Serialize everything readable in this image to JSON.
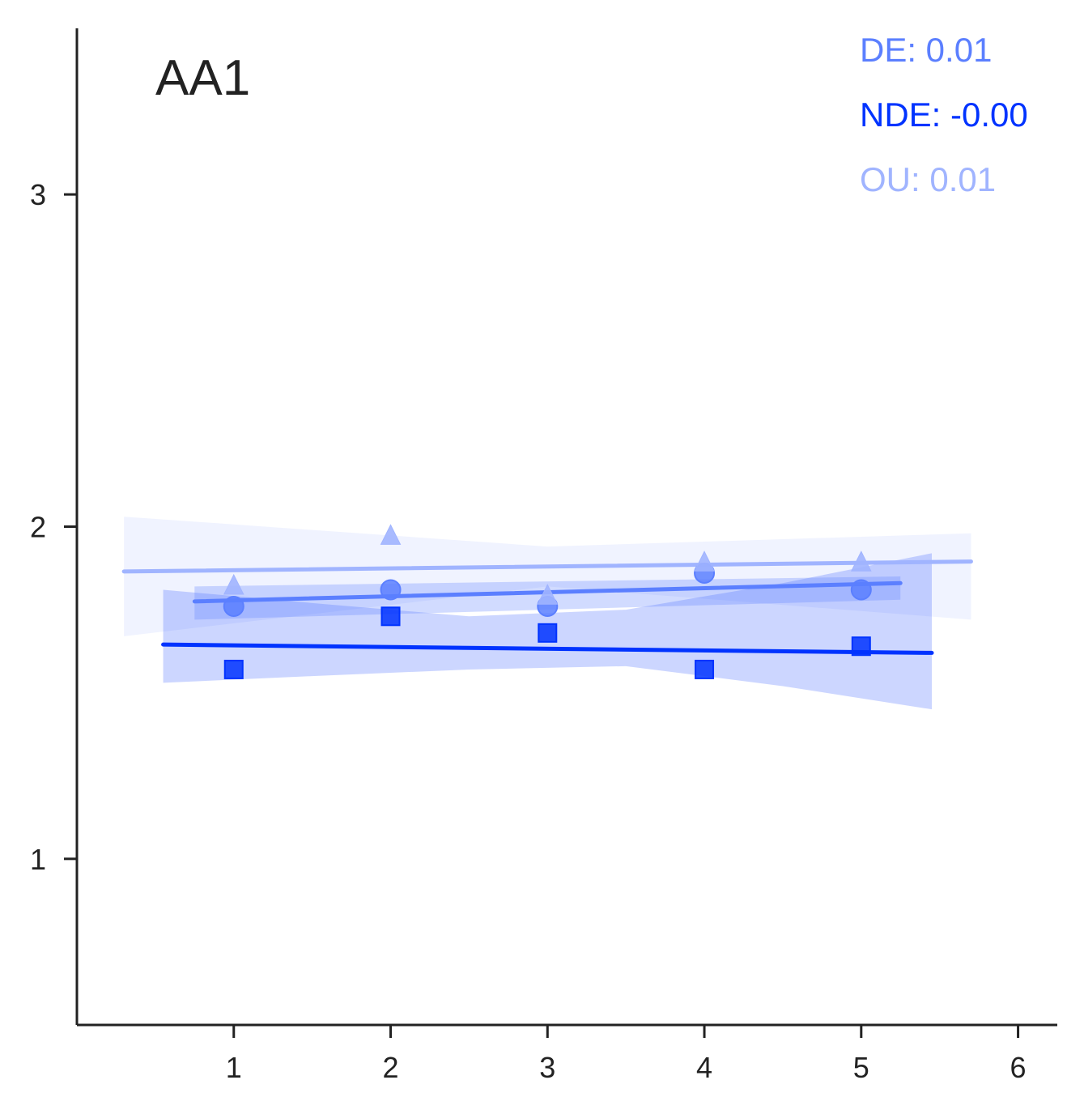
{
  "chart_data": {
    "type": "scatter",
    "title": "AA1",
    "xlabel": "",
    "ylabel": "",
    "xlim": [
      0.0,
      6.25
    ],
    "ylim": [
      0.5,
      3.5
    ],
    "xticks": [
      1,
      2,
      3,
      4,
      5,
      6
    ],
    "yticks": [
      1,
      2,
      3
    ],
    "grid": false,
    "series": [
      {
        "key": "DE",
        "color": "#5B7FFF",
        "marker": "circle",
        "x": [
          1,
          2,
          3,
          4,
          5
        ],
        "values": [
          1.76,
          1.81,
          1.76,
          1.86,
          1.81
        ],
        "fit": {
          "x": [
            0.75,
            5.25
          ],
          "y": [
            1.775,
            1.83
          ]
        },
        "band": {
          "x": [
            0.75,
            5.25
          ],
          "upper": [
            1.82,
            1.85
          ],
          "lower": [
            1.72,
            1.78
          ]
        }
      },
      {
        "key": "NDE",
        "color": "#0033FF",
        "marker": "square",
        "x": [
          1,
          2,
          3,
          4,
          5
        ],
        "values": [
          1.57,
          1.73,
          1.68,
          1.57,
          1.64
        ],
        "fit": {
          "x": [
            0.55,
            5.45
          ],
          "y": [
            1.645,
            1.62
          ]
        },
        "band": {
          "x": [
            0.55,
            1.5,
            2.5,
            3.5,
            4.5,
            5.45
          ],
          "upper": [
            1.81,
            1.77,
            1.73,
            1.75,
            1.83,
            1.92
          ],
          "lower": [
            1.53,
            1.55,
            1.57,
            1.58,
            1.52,
            1.45
          ]
        }
      },
      {
        "key": "OU",
        "color": "#A0B4FF",
        "marker": "triangle",
        "x": [
          1,
          2,
          3,
          4,
          5
        ],
        "values": [
          1.82,
          1.97,
          1.79,
          1.89,
          1.89
        ],
        "fit": {
          "x": [
            0.3,
            5.7
          ],
          "y": [
            1.865,
            1.895
          ]
        },
        "band": {
          "x": [
            0.3,
            3.0,
            5.7
          ],
          "upper": [
            2.03,
            1.94,
            1.98
          ],
          "lower": [
            1.67,
            1.82,
            1.72
          ]
        }
      }
    ],
    "annotations": [
      {
        "text": "DE: 0.01",
        "color": "#5B7FFF"
      },
      {
        "text": "NDE: -0.00",
        "color": "#0033FF"
      },
      {
        "text": "OU: 0.01",
        "color": "#A0B4FF"
      }
    ]
  }
}
